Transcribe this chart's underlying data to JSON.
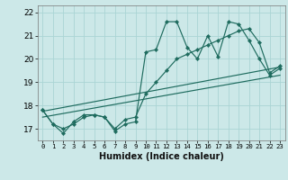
{
  "title": "",
  "xlabel": "Humidex (Indice chaleur)",
  "ylabel": "",
  "bg_color": "#cce8e8",
  "line_color": "#1e6b5e",
  "grid_color": "#aad4d4",
  "xlim": [
    -0.5,
    23.5
  ],
  "ylim": [
    16.5,
    22.3
  ],
  "xticks": [
    0,
    1,
    2,
    3,
    4,
    5,
    6,
    7,
    8,
    9,
    10,
    11,
    12,
    13,
    14,
    15,
    16,
    17,
    18,
    19,
    20,
    21,
    22,
    23
  ],
  "yticks": [
    17,
    18,
    19,
    20,
    21,
    22
  ],
  "series1_x": [
    0,
    1,
    2,
    3,
    4,
    5,
    6,
    7,
    8,
    9,
    10,
    11,
    12,
    13,
    14,
    15,
    16,
    17,
    18,
    19,
    20,
    21,
    22,
    23
  ],
  "series1_y": [
    17.8,
    17.2,
    16.8,
    17.3,
    17.6,
    17.6,
    17.5,
    16.9,
    17.2,
    17.3,
    20.3,
    20.4,
    21.6,
    21.6,
    20.5,
    20.0,
    21.0,
    20.1,
    21.6,
    21.5,
    20.8,
    20.0,
    19.3,
    19.6
  ],
  "series2_x": [
    0,
    1,
    2,
    3,
    4,
    5,
    6,
    7,
    8,
    9,
    10,
    11,
    12,
    13,
    14,
    15,
    16,
    17,
    18,
    19,
    20,
    21,
    22,
    23
  ],
  "series2_y": [
    17.8,
    17.2,
    17.0,
    17.2,
    17.5,
    17.6,
    17.5,
    17.0,
    17.4,
    17.5,
    18.5,
    19.0,
    19.5,
    20.0,
    20.2,
    20.4,
    20.6,
    20.8,
    21.0,
    21.2,
    21.3,
    20.7,
    19.4,
    19.7
  ],
  "trend1_x": [
    0,
    23
  ],
  "trend1_y": [
    17.75,
    19.65
  ],
  "trend2_x": [
    0,
    23
  ],
  "trend2_y": [
    17.5,
    19.3
  ]
}
